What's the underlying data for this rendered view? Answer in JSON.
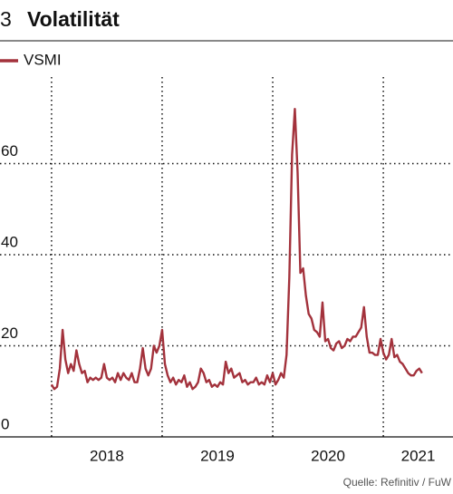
{
  "chart_data": {
    "type": "line",
    "number": "3",
    "title": "Volatilität",
    "source": "Quelle: Refinitiv / FuW",
    "x": [
      2018.0,
      2018.025,
      2018.05,
      2018.075,
      2018.1,
      2018.125,
      2018.15,
      2018.175,
      2018.2,
      2018.225,
      2018.25,
      2018.275,
      2018.3,
      2018.325,
      2018.35,
      2018.375,
      2018.4,
      2018.425,
      2018.45,
      2018.475,
      2018.5,
      2018.525,
      2018.55,
      2018.575,
      2018.6,
      2018.625,
      2018.65,
      2018.675,
      2018.7,
      2018.725,
      2018.75,
      2018.775,
      2018.8,
      2018.825,
      2018.85,
      2018.875,
      2018.9,
      2018.925,
      2018.95,
      2018.975,
      2019.0,
      2019.025,
      2019.05,
      2019.075,
      2019.1,
      2019.125,
      2019.15,
      2019.175,
      2019.2,
      2019.225,
      2019.25,
      2019.275,
      2019.3,
      2019.325,
      2019.35,
      2019.375,
      2019.4,
      2019.425,
      2019.45,
      2019.475,
      2019.5,
      2019.525,
      2019.55,
      2019.575,
      2019.6,
      2019.625,
      2019.65,
      2019.675,
      2019.7,
      2019.725,
      2019.75,
      2019.775,
      2019.8,
      2019.825,
      2019.85,
      2019.875,
      2019.9,
      2019.925,
      2019.95,
      2019.975,
      2020.0,
      2020.025,
      2020.05,
      2020.075,
      2020.1,
      2020.125,
      2020.15,
      2020.175,
      2020.2,
      2020.225,
      2020.25,
      2020.275,
      2020.3,
      2020.325,
      2020.35,
      2020.375,
      2020.4,
      2020.425,
      2020.45,
      2020.475,
      2020.5,
      2020.525,
      2020.55,
      2020.575,
      2020.6,
      2020.625,
      2020.65,
      2020.675,
      2020.7,
      2020.725,
      2020.75,
      2020.775,
      2020.8,
      2020.825,
      2020.85,
      2020.875,
      2020.9,
      2020.925,
      2020.95,
      2020.975,
      2021.0,
      2021.025,
      2021.05,
      2021.075,
      2021.1,
      2021.125,
      2021.15,
      2021.175,
      2021.2,
      2021.225,
      2021.25,
      2021.275,
      2021.3,
      2021.325,
      2021.35
    ],
    "series": [
      {
        "name": "VSMI",
        "color": "#a3323c",
        "values": [
          11.5,
          10.5,
          11,
          15,
          23.5,
          17,
          14,
          16,
          14.5,
          19,
          16,
          14,
          14.5,
          12,
          13,
          12.5,
          13,
          12.5,
          13,
          16,
          13,
          12.5,
          13,
          12,
          14,
          12.5,
          14,
          13,
          12.5,
          14,
          12,
          12,
          15,
          19.5,
          15,
          13.5,
          15,
          20,
          18.5,
          20,
          23.5,
          16,
          13.5,
          12,
          13,
          11.5,
          12.5,
          12,
          13.5,
          11,
          12,
          10.5,
          11,
          12,
          15,
          14,
          12,
          12.5,
          11,
          11.5,
          11,
          12,
          11.5,
          16.5,
          14,
          15,
          13,
          13.5,
          14,
          12,
          12.5,
          11.5,
          12,
          12,
          13,
          11.5,
          12,
          11.5,
          13.5,
          12,
          14,
          11.5,
          12.5,
          14,
          13,
          18,
          35,
          62,
          72,
          58,
          36,
          37,
          31,
          27,
          26,
          23.5,
          23,
          22,
          29.5,
          21,
          21.5,
          19.5,
          19,
          20.5,
          21,
          19.5,
          20,
          21.5,
          21,
          22,
          22,
          23,
          24,
          28.5,
          22,
          18.5,
          18.5,
          18,
          18,
          21.5,
          18.5,
          17,
          18,
          21.5,
          17.5,
          18,
          16.5,
          16,
          15,
          14,
          13.5,
          13.5,
          14.5,
          15,
          14
        ]
      }
    ],
    "xlim": [
      2017.534,
      2021.63
    ],
    "xticks": [
      2018,
      2019,
      2020,
      2021
    ],
    "ylim": [
      0,
      79
    ],
    "yticks": [
      0,
      20,
      40,
      60
    ],
    "grid": true
  }
}
